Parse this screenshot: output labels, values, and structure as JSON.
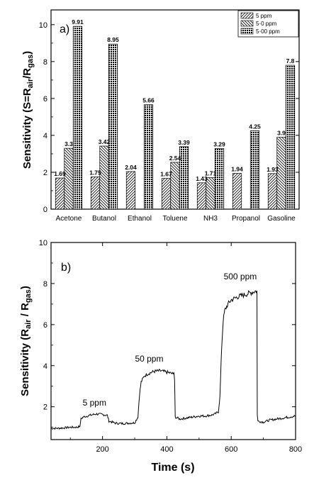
{
  "chart_data": [
    {
      "type": "bar",
      "panel_label": "a)",
      "categories": [
        "Acetone",
        "Butanol",
        "Ethanol",
        "Toluene",
        "NH3",
        "Propanol",
        "Gasoline"
      ],
      "series": [
        {
          "name": "5 ppm",
          "pattern": "hatch-fwd",
          "values": [
            1.69,
            1.75,
            2.04,
            1.67,
            1.43,
            1.94,
            1.93
          ],
          "labels": [
            "1.69",
            "1.75",
            "2.04",
            "1.67",
            "1.43",
            "1.94",
            "1.93"
          ]
        },
        {
          "name": "50 ppm",
          "pattern": "hatch-back",
          "values": [
            3.3,
            3.42,
            null,
            2.54,
            1.71,
            null,
            3.9
          ],
          "labels": [
            "3.3",
            "3.42",
            "",
            "2.54",
            "1.71",
            "",
            "3.9"
          ]
        },
        {
          "name": "500 ppm",
          "pattern": "dense-dots",
          "values": [
            9.91,
            8.95,
            5.66,
            3.39,
            3.29,
            4.25,
            7.8
          ],
          "labels": [
            "9.91",
            "8.95",
            "5.66",
            "3.39",
            "3.29",
            "4.25",
            "7.8"
          ]
        }
      ],
      "legend": [
        "5 ppm",
        "5·0 ppm",
        "5·00 ppm"
      ],
      "legend_position": "top-right",
      "ylabel": {
        "pre": "Sensitivity (S=R",
        "sub1": "air",
        "mid": "/R",
        "sub2": "gas",
        "post": ")"
      },
      "ylim": [
        0,
        10.8
      ],
      "yticks": [
        "0",
        "2",
        "4",
        "6",
        "8",
        "10"
      ],
      "grid": false
    },
    {
      "type": "line",
      "panel_label": "b)",
      "xlabel": "Time (s)",
      "ylabel": {
        "pre": "Sensitivity (R",
        "sub1": "air",
        "mid": " / R",
        "sub2": "gas",
        "post": ")"
      },
      "xlim": [
        40,
        800
      ],
      "ylim": [
        0.4,
        10
      ],
      "xticks": [
        "200",
        "400",
        "600",
        "800"
      ],
      "yticks": [
        "2",
        "4",
        "6",
        "8",
        "10"
      ],
      "grid": false,
      "series": [
        {
          "name": "",
          "x": [
            40,
            60,
            80,
            100,
            120,
            130,
            133,
            140,
            160,
            180,
            200,
            215,
            220,
            240,
            260,
            280,
            300,
            310,
            315,
            320,
            330,
            340,
            360,
            380,
            400,
            420,
            422,
            424,
            426,
            440,
            460,
            480,
            500,
            520,
            540,
            550,
            560,
            565,
            570,
            575,
            580,
            590,
            600,
            620,
            640,
            660,
            680,
            681,
            683,
            700,
            720,
            740,
            760,
            780,
            800
          ],
          "y": [
            0.95,
            0.95,
            0.97,
            1.0,
            1.0,
            1.05,
            1.4,
            1.5,
            1.58,
            1.65,
            1.62,
            1.58,
            1.3,
            1.2,
            1.18,
            1.2,
            1.22,
            1.5,
            2.6,
            3.2,
            3.5,
            3.6,
            3.72,
            3.75,
            3.68,
            3.6,
            3.65,
            3.3,
            1.5,
            1.4,
            1.45,
            1.5,
            1.55,
            1.55,
            1.6,
            1.65,
            1.75,
            2.5,
            4.8,
            6.2,
            6.7,
            7.0,
            7.2,
            7.35,
            7.45,
            7.55,
            7.65,
            1.6,
            1.3,
            1.25,
            1.35,
            1.4,
            1.45,
            1.5,
            1.55
          ]
        }
      ],
      "annotations": [
        {
          "text": "5 ppm",
          "x": 175,
          "y": 2.05
        },
        {
          "text": "50 ppm",
          "x": 345,
          "y": 4.2
        },
        {
          "text": "500 ppm",
          "x": 628,
          "y": 8.2
        }
      ]
    }
  ]
}
